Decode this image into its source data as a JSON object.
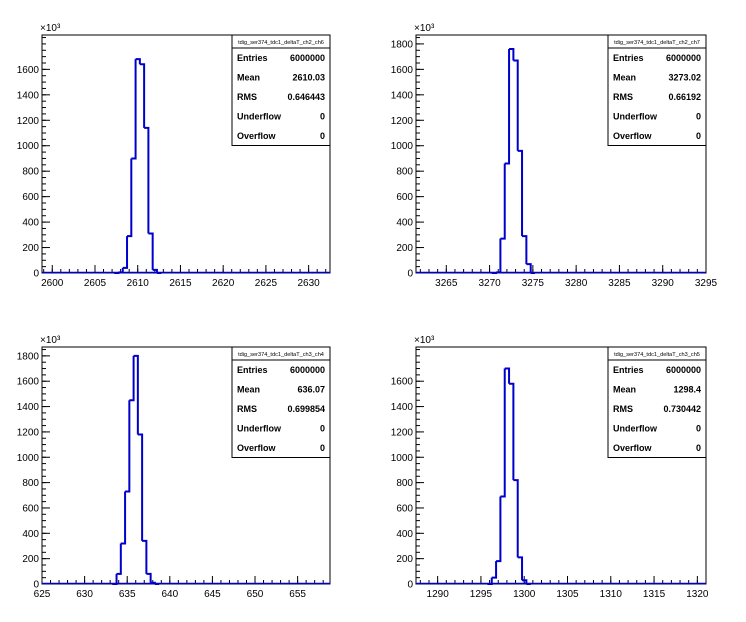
{
  "chart_data": [
    {
      "type": "histogram",
      "stats_title": "tdig_ser374_tdc1_deltaT_ch2_ch6",
      "stats": [
        {
          "label": "Entries",
          "value": "6000000"
        },
        {
          "label": "Mean",
          "value": "2610.03"
        },
        {
          "label": "RMS",
          "value": "0.646443"
        },
        {
          "label": "Underflow",
          "value": "0"
        },
        {
          "label": "Overflow",
          "value": "0"
        }
      ],
      "exponent_label": "×10³",
      "xlim": [
        2598.8,
        2632.5
      ],
      "ylim": [
        0,
        1870
      ],
      "x_ticks": [
        2600,
        2605,
        2610,
        2615,
        2620,
        2625,
        2630
      ],
      "y_ticks": [
        0,
        200,
        400,
        600,
        800,
        1000,
        1200,
        1400,
        1600
      ],
      "bin_width": 0.5,
      "bins": [
        {
          "x": 2607.5,
          "y": 0
        },
        {
          "x": 2608.0,
          "y": 5
        },
        {
          "x": 2608.5,
          "y": 40
        },
        {
          "x": 2609.0,
          "y": 290
        },
        {
          "x": 2609.5,
          "y": 900
        },
        {
          "x": 2610.0,
          "y": 1680
        },
        {
          "x": 2610.5,
          "y": 1640
        },
        {
          "x": 2611.0,
          "y": 1140
        },
        {
          "x": 2611.5,
          "y": 310
        },
        {
          "x": 2612.0,
          "y": 25
        },
        {
          "x": 2612.5,
          "y": 0
        }
      ]
    },
    {
      "type": "histogram",
      "stats_title": "tdig_ser374_tdc1_deltaT_ch2_ch7",
      "stats": [
        {
          "label": "Entries",
          "value": "6000000"
        },
        {
          "label": "Mean",
          "value": "3273.02"
        },
        {
          "label": "RMS",
          "value": "0.66192"
        },
        {
          "label": "Underflow",
          "value": "0"
        },
        {
          "label": "Overflow",
          "value": "0"
        }
      ],
      "exponent_label": "×10³",
      "xlim": [
        3261.5,
        3295.0
      ],
      "ylim": [
        0,
        1870
      ],
      "x_ticks": [
        3265,
        3270,
        3275,
        3280,
        3285,
        3290,
        3295
      ],
      "y_ticks": [
        0,
        200,
        400,
        600,
        800,
        1000,
        1200,
        1400,
        1600,
        1800
      ],
      "bin_width": 0.5,
      "bins": [
        {
          "x": 3270.5,
          "y": 0
        },
        {
          "x": 3271.0,
          "y": 5
        },
        {
          "x": 3271.5,
          "y": 270
        },
        {
          "x": 3272.0,
          "y": 860
        },
        {
          "x": 3272.5,
          "y": 1760
        },
        {
          "x": 3273.0,
          "y": 1670
        },
        {
          "x": 3273.5,
          "y": 960
        },
        {
          "x": 3274.0,
          "y": 290
        },
        {
          "x": 3274.5,
          "y": 70
        },
        {
          "x": 3275.0,
          "y": 0
        }
      ]
    },
    {
      "type": "histogram",
      "stats_title": "tdig_ser374_tdc1_deltaT_ch3_ch4",
      "stats": [
        {
          "label": "Entries",
          "value": "6000000"
        },
        {
          "label": "Mean",
          "value": "636.07"
        },
        {
          "label": "RMS",
          "value": "0.699854"
        },
        {
          "label": "Underflow",
          "value": "0"
        },
        {
          "label": "Overflow",
          "value": "0"
        }
      ],
      "exponent_label": "×10³",
      "xlim": [
        625,
        658.8
      ],
      "ylim": [
        0,
        1870
      ],
      "x_ticks": [
        625,
        630,
        635,
        640,
        645,
        650,
        655
      ],
      "y_ticks": [
        0,
        200,
        400,
        600,
        800,
        1000,
        1200,
        1400,
        1600,
        1800
      ],
      "bin_width": 0.5,
      "bins": [
        {
          "x": 633.5,
          "y": 0
        },
        {
          "x": 634.0,
          "y": 80
        },
        {
          "x": 634.5,
          "y": 320
        },
        {
          "x": 635.0,
          "y": 730
        },
        {
          "x": 635.5,
          "y": 1450
        },
        {
          "x": 636.0,
          "y": 1800
        },
        {
          "x": 636.5,
          "y": 1180
        },
        {
          "x": 637.0,
          "y": 340
        },
        {
          "x": 637.5,
          "y": 80
        },
        {
          "x": 638.0,
          "y": 10
        },
        {
          "x": 638.5,
          "y": 0
        }
      ]
    },
    {
      "type": "histogram",
      "stats_title": "tdig_ser374_tdc1_deltaT_ch3_ch5",
      "stats": [
        {
          "label": "Entries",
          "value": "6000000"
        },
        {
          "label": "Mean",
          "value": "1298.4"
        },
        {
          "label": "RMS",
          "value": "0.730442"
        },
        {
          "label": "Underflow",
          "value": "0"
        },
        {
          "label": "Overflow",
          "value": "0"
        }
      ],
      "exponent_label": "×10³",
      "xlim": [
        1287.5,
        1321.0
      ],
      "ylim": [
        0,
        1870
      ],
      "x_ticks": [
        1290,
        1295,
        1300,
        1305,
        1310,
        1315,
        1320
      ],
      "y_ticks": [
        0,
        200,
        400,
        600,
        800,
        1000,
        1200,
        1400,
        1600
      ],
      "bin_width": 0.5,
      "bins": [
        {
          "x": 1296.0,
          "y": 0
        },
        {
          "x": 1296.5,
          "y": 50
        },
        {
          "x": 1297.0,
          "y": 180
        },
        {
          "x": 1297.5,
          "y": 690
        },
        {
          "x": 1298.0,
          "y": 1700
        },
        {
          "x": 1298.5,
          "y": 1580
        },
        {
          "x": 1299.0,
          "y": 820
        },
        {
          "x": 1299.5,
          "y": 210
        },
        {
          "x": 1300.0,
          "y": 30
        },
        {
          "x": 1300.5,
          "y": 0
        }
      ]
    }
  ],
  "colors": {
    "line": "#0000cc",
    "frame": "#000000",
    "background": "#ffffff"
  }
}
